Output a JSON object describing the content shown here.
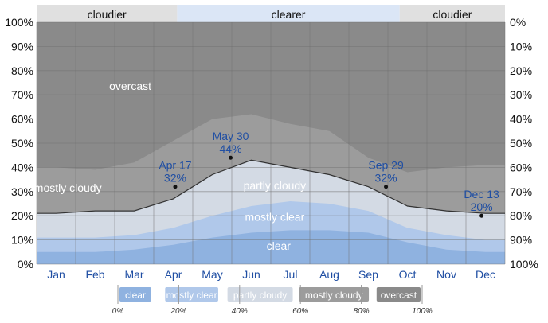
{
  "chart_data": {
    "type": "area",
    "x": [
      "Jan",
      "Feb",
      "Mar",
      "Apr",
      "May",
      "Jun",
      "Jul",
      "Aug",
      "Sep",
      "Oct",
      "Nov",
      "Dec"
    ],
    "yaxis_left": [
      "100%",
      "90%",
      "80%",
      "70%",
      "60%",
      "50%",
      "40%",
      "30%",
      "20%",
      "10%",
      "0%"
    ],
    "yaxis_right": [
      "0%",
      "10%",
      "20%",
      "30%",
      "40%",
      "50%",
      "60%",
      "70%",
      "80%",
      "90%",
      "100%"
    ],
    "ylim": [
      0,
      100
    ],
    "sky_bands": [
      {
        "label": "cloudier",
        "start_month": 0,
        "end_month": 3.6,
        "color": "#e0e0e0"
      },
      {
        "label": "clearer",
        "start_month": 3.6,
        "end_month": 9.3,
        "color": "#dbe6f6"
      },
      {
        "label": "cloudier",
        "start_month": 9.3,
        "end_month": 12,
        "color": "#e0e0e0"
      }
    ],
    "series": [
      {
        "name": "clear",
        "color": "#8fb2e0",
        "values": [
          5,
          5,
          6,
          8,
          11,
          13,
          14,
          14,
          13,
          9,
          6,
          5
        ]
      },
      {
        "name": "mostly clear",
        "color": "#b0c8ea",
        "values": [
          11,
          11,
          12,
          15,
          20,
          24,
          26,
          25,
          22,
          15,
          12,
          10
        ]
      },
      {
        "name": "partly cloudy",
        "color": "#d3dae4",
        "values": [
          21,
          22,
          22,
          27,
          37,
          43,
          40,
          37,
          32,
          24,
          22,
          21
        ]
      },
      {
        "name": "mostly cloudy",
        "color": "#9c9c9c",
        "values": [
          40,
          39,
          42,
          51,
          60,
          62,
          58,
          55,
          44,
          38,
          40,
          41
        ]
      },
      {
        "name": "overcast",
        "color": "#8a8a8a",
        "values": [
          100,
          100,
          100,
          100,
          100,
          100,
          100,
          100,
          100,
          100,
          100,
          100
        ]
      }
    ],
    "area_labels": [
      {
        "text": "overcast",
        "month": 2.4,
        "value": 72
      },
      {
        "text": "mostly cloudy",
        "month": 0.8,
        "value": 30
      },
      {
        "text": "partly cloudy",
        "month": 6.1,
        "value": 31
      },
      {
        "text": "mostly clear",
        "month": 6.1,
        "value": 18
      },
      {
        "text": "clear",
        "month": 6.2,
        "value": 6
      }
    ],
    "annotations": [
      {
        "date": "Apr 17",
        "value": "32%",
        "month": 3.55,
        "y": 32
      },
      {
        "date": "May 30",
        "value": "44%",
        "month": 4.97,
        "y": 44
      },
      {
        "date": "Sep 29",
        "value": "32%",
        "month": 8.95,
        "y": 32
      },
      {
        "date": "Dec 13",
        "value": "20%",
        "month": 11.4,
        "y": 20
      }
    ],
    "legend": {
      "items": [
        "clear",
        "mostly clear",
        "partly cloudy",
        "mostly cloudy",
        "overcast"
      ],
      "ticks": [
        "0%",
        "20%",
        "40%",
        "60%",
        "80%",
        "100%"
      ]
    }
  }
}
